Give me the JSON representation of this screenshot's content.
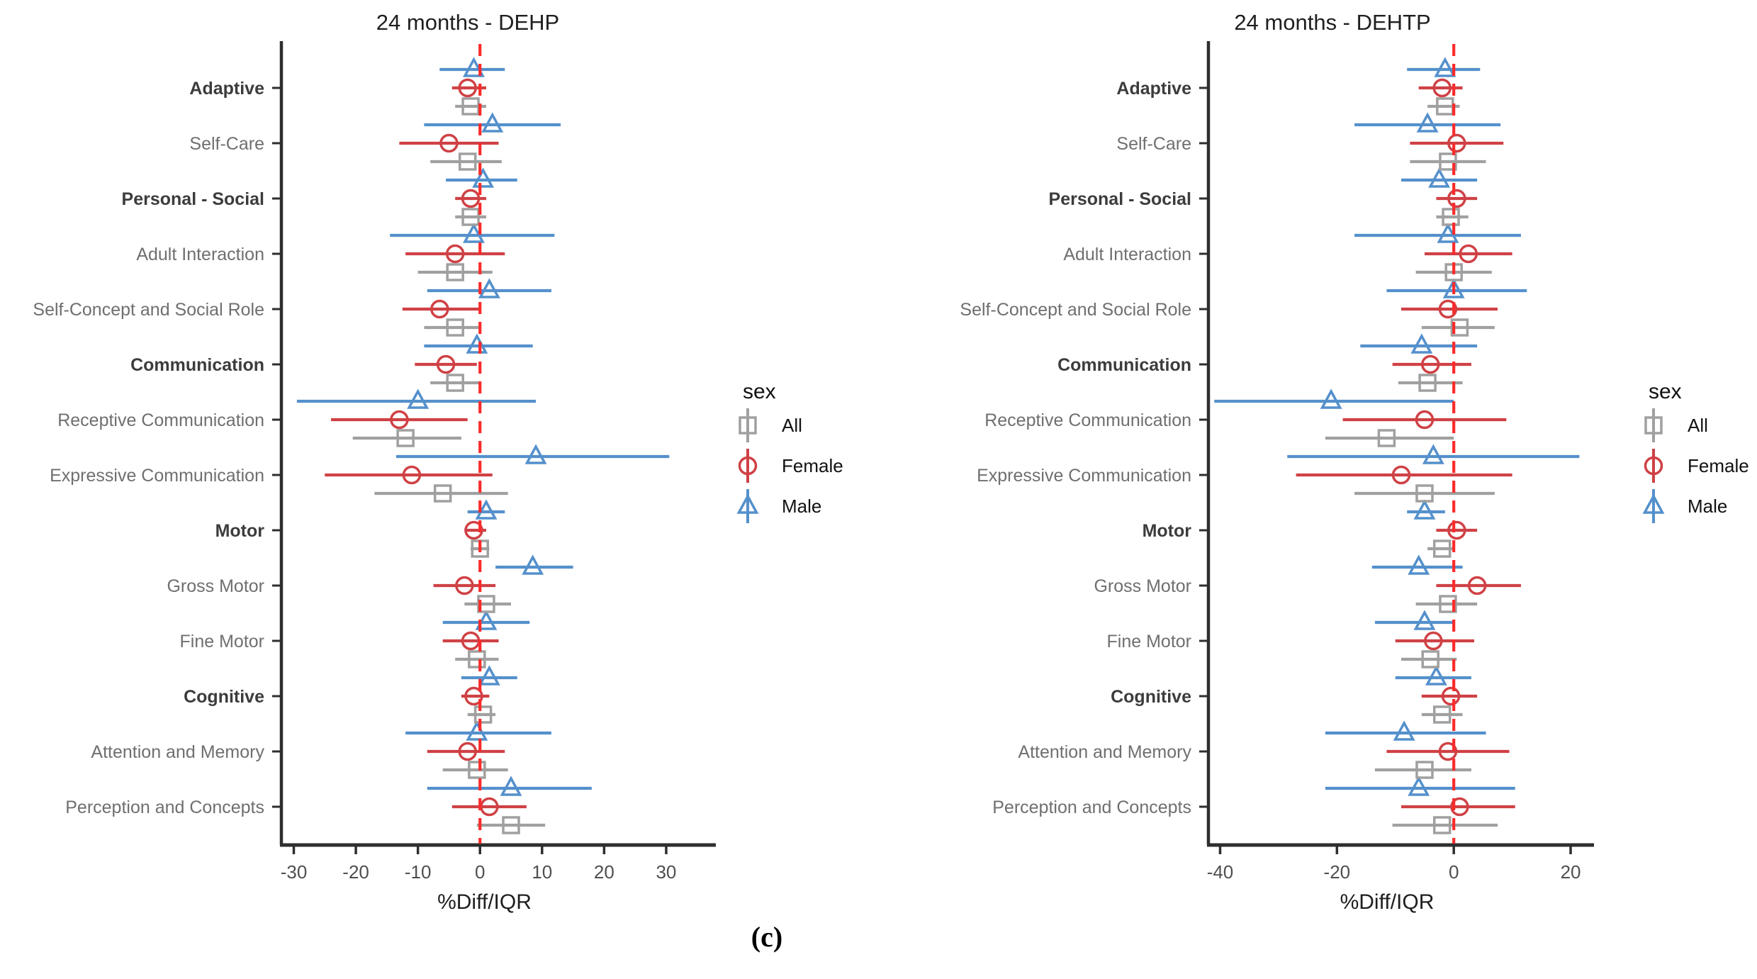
{
  "figure": {
    "caption": "(c)",
    "xlabel": "%Diff/IQR",
    "legend": {
      "title": "sex",
      "items": [
        {
          "label": "All",
          "marker": "square",
          "color": "#a0a0a0"
        },
        {
          "label": "Female",
          "marker": "circle",
          "color": "#cf4145"
        },
        {
          "label": "Male",
          "marker": "triangle",
          "color": "#5490cc"
        }
      ]
    },
    "colors": {
      "male_blue": "#5490cc",
      "female_red": "#cf4145",
      "all_gray": "#a0a0a0",
      "refline_red": "#fb2b2b",
      "axis_dark": "#2e2e2e",
      "label_bold_gray": "#3c3c3c",
      "label_light_gray": "#6f6f6f",
      "tick_text_gray": "#4f4f4f"
    }
  },
  "chart_data": [
    {
      "type": "scatter",
      "subtype": "forest-dot-ci",
      "title": "24 months - DEHP",
      "xlabel": "%Diff/IQR",
      "xlim": [
        -32,
        38
      ],
      "xticks": [
        -30,
        -20,
        -10,
        0,
        10,
        20,
        30
      ],
      "refline_x": 0,
      "grid": false,
      "categories": [
        {
          "label": "Adaptive",
          "bold": true
        },
        {
          "label": "Self-Care",
          "bold": false
        },
        {
          "label": "Personal - Social",
          "bold": true
        },
        {
          "label": "Adult Interaction",
          "bold": false
        },
        {
          "label": "Self-Concept and Social Role",
          "bold": false
        },
        {
          "label": "Communication",
          "bold": true
        },
        {
          "label": "Receptive Communication",
          "bold": false
        },
        {
          "label": "Expressive Communication",
          "bold": false
        },
        {
          "label": "Motor",
          "bold": true
        },
        {
          "label": "Gross Motor",
          "bold": false
        },
        {
          "label": "Fine Motor",
          "bold": false
        },
        {
          "label": "Cognitive",
          "bold": true
        },
        {
          "label": "Attention and Memory",
          "bold": false
        },
        {
          "label": "Perception and Concepts",
          "bold": false
        }
      ],
      "series": [
        {
          "name": "Male",
          "marker": "triangle",
          "color": "#5490cc",
          "offset": -26,
          "values_est_lo_hi": [
            [
              -1,
              -6.5,
              4
            ],
            [
              2,
              -9,
              13
            ],
            [
              0.5,
              -5.5,
              6
            ],
            [
              -1,
              -14.5,
              12
            ],
            [
              1.5,
              -8.5,
              11.5
            ],
            [
              -0.5,
              -9,
              8.5
            ],
            [
              -10,
              -29.5,
              9
            ],
            [
              9,
              -13.5,
              30.5
            ],
            [
              1,
              -2,
              4
            ],
            [
              8.5,
              2.5,
              15
            ],
            [
              1,
              -6,
              8
            ],
            [
              1.5,
              -3,
              6
            ],
            [
              -0.5,
              -12,
              11.5
            ],
            [
              5,
              -8.5,
              18
            ]
          ]
        },
        {
          "name": "Female",
          "marker": "circle",
          "color": "#cf4145",
          "offset": 0,
          "values_est_lo_hi": [
            [
              -2,
              -4.5,
              1
            ],
            [
              -5,
              -13,
              3
            ],
            [
              -1.5,
              -4,
              1
            ],
            [
              -4,
              -12,
              4
            ],
            [
              -6.5,
              -12.5,
              0
            ],
            [
              -5.5,
              -10.5,
              -0.5
            ],
            [
              -13,
              -24,
              -2
            ],
            [
              -11,
              -25,
              2
            ],
            [
              -1,
              -2.5,
              1
            ],
            [
              -2.5,
              -7.5,
              2.5
            ],
            [
              -1.5,
              -6,
              3
            ],
            [
              -1,
              -3,
              1.5
            ],
            [
              -2,
              -8.5,
              4
            ],
            [
              1.5,
              -4.5,
              7.5
            ]
          ]
        },
        {
          "name": "All",
          "marker": "square",
          "color": "#a0a0a0",
          "offset": 26,
          "values_est_lo_hi": [
            [
              -1.5,
              -4,
              1
            ],
            [
              -2,
              -8,
              3.5
            ],
            [
              -1.5,
              -4,
              1
            ],
            [
              -4,
              -10,
              2
            ],
            [
              -4,
              -9,
              0
            ],
            [
              -4,
              -8,
              0
            ],
            [
              -12,
              -20.5,
              -3
            ],
            [
              -6,
              -17,
              4.5
            ],
            [
              0,
              -1.5,
              1.5
            ],
            [
              1,
              -2.5,
              5
            ],
            [
              -0.5,
              -4,
              3
            ],
            [
              0.5,
              -2,
              2.5
            ],
            [
              -0.5,
              -6,
              4.5
            ],
            [
              5,
              -0.5,
              10.5
            ]
          ]
        }
      ]
    },
    {
      "type": "scatter",
      "subtype": "forest-dot-ci",
      "title": "24 months - DEHTP",
      "xlabel": "%Diff/IQR",
      "xlim": [
        -42,
        24
      ],
      "xticks": [
        -40,
        -20,
        0,
        20
      ],
      "refline_x": 0,
      "grid": false,
      "categories": [
        {
          "label": "Adaptive",
          "bold": true
        },
        {
          "label": "Self-Care",
          "bold": false
        },
        {
          "label": "Personal - Social",
          "bold": true
        },
        {
          "label": "Adult Interaction",
          "bold": false
        },
        {
          "label": "Self-Concept and Social Role",
          "bold": false
        },
        {
          "label": "Communication",
          "bold": true
        },
        {
          "label": "Receptive Communication",
          "bold": false
        },
        {
          "label": "Expressive Communication",
          "bold": false
        },
        {
          "label": "Motor",
          "bold": true
        },
        {
          "label": "Gross Motor",
          "bold": false
        },
        {
          "label": "Fine Motor",
          "bold": false
        },
        {
          "label": "Cognitive",
          "bold": true
        },
        {
          "label": "Attention and Memory",
          "bold": false
        },
        {
          "label": "Perception and Concepts",
          "bold": false
        }
      ],
      "series": [
        {
          "name": "Male",
          "marker": "triangle",
          "color": "#5490cc",
          "offset": -26,
          "values_est_lo_hi": [
            [
              -1.5,
              -8,
              4.5
            ],
            [
              -4.5,
              -17,
              8
            ],
            [
              -2.5,
              -9,
              4
            ],
            [
              -1,
              -17,
              11.5
            ],
            [
              0,
              -11.5,
              12.5
            ],
            [
              -5.5,
              -16,
              4
            ],
            [
              -21,
              -41,
              0
            ],
            [
              -3.5,
              -28.5,
              21.5
            ],
            [
              -5,
              -8,
              -1.5
            ],
            [
              -6,
              -14,
              1.5
            ],
            [
              -5,
              -13.5,
              0
            ],
            [
              -3,
              -10,
              3
            ],
            [
              -8.5,
              -22,
              5.5
            ],
            [
              -6,
              -22,
              10.5
            ]
          ]
        },
        {
          "name": "Female",
          "marker": "circle",
          "color": "#cf4145",
          "offset": 0,
          "values_est_lo_hi": [
            [
              -2,
              -6,
              1.5
            ],
            [
              0.5,
              -7.5,
              8.5
            ],
            [
              0.5,
              -3,
              4
            ],
            [
              2.5,
              -5,
              10
            ],
            [
              -1,
              -9,
              7.5
            ],
            [
              -4,
              -10.5,
              3
            ],
            [
              -5,
              -19,
              9
            ],
            [
              -9,
              -27,
              10
            ],
            [
              0.5,
              -3,
              4
            ],
            [
              4,
              -3,
              11.5
            ],
            [
              -3.5,
              -10,
              3.5
            ],
            [
              -0.5,
              -5.5,
              4
            ],
            [
              -1,
              -11.5,
              9.5
            ],
            [
              1,
              -9,
              10.5
            ]
          ]
        },
        {
          "name": "All",
          "marker": "square",
          "color": "#a0a0a0",
          "offset": 26,
          "values_est_lo_hi": [
            [
              -1.5,
              -4.5,
              1
            ],
            [
              -1,
              -7.5,
              5.5
            ],
            [
              -0.5,
              -3,
              2.5
            ],
            [
              0,
              -6.5,
              6.5
            ],
            [
              1,
              -5.5,
              7
            ],
            [
              -4.5,
              -9.5,
              1.5
            ],
            [
              -11.5,
              -22,
              0
            ],
            [
              -5,
              -17,
              7
            ],
            [
              -2,
              -4.5,
              0
            ],
            [
              -1,
              -6.5,
              4
            ],
            [
              -4,
              -9,
              0.5
            ],
            [
              -2,
              -5.5,
              1.5
            ],
            [
              -5,
              -13.5,
              3
            ],
            [
              -2,
              -10.5,
              7.5
            ]
          ]
        }
      ]
    }
  ]
}
